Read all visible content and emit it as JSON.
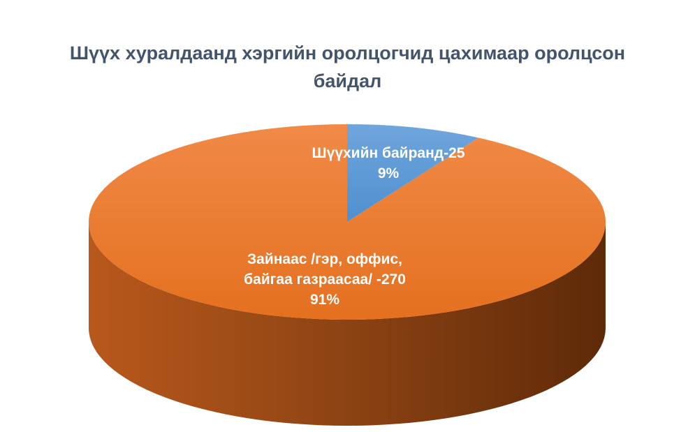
{
  "chart_data": {
    "type": "pie",
    "title_lines": [
      "Шүүх хуралдаанд хэргийн оролцогчид цахимаар оролцсон",
      "байдал"
    ],
    "slices": [
      {
        "label_lines": [
          "Шүүхийн байранд-25",
          "9%"
        ],
        "value": 25,
        "percent": 9,
        "color": "#5b9bd5",
        "dark_color": "#2e5f8f"
      },
      {
        "label_lines": [
          "Зайнаас /гэр, оффис,",
          "байгаа газраасаа/ -270",
          "91%"
        ],
        "value": 270,
        "percent": 91,
        "color": "#ed7d31",
        "dark_color": "#7a3a10"
      }
    ],
    "style": "3d",
    "legend": "none"
  }
}
